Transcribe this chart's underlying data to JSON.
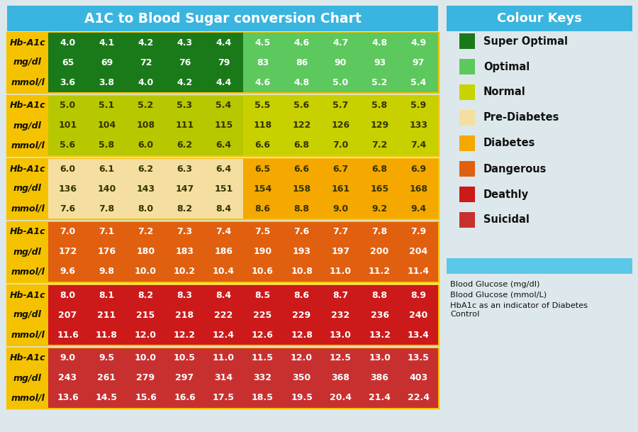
{
  "title": "A1C to Blood Sugar conversion Chart",
  "colour_keys_title": "Colour Keys",
  "background_color": "#dde8ec",
  "header_color": "#3ab5e0",
  "legend_items": [
    {
      "label": "Super Optimal",
      "color": "#1a7a1a"
    },
    {
      "label": "Optimal",
      "color": "#5dc85d"
    },
    {
      "label": "Normal",
      "color": "#c8d400"
    },
    {
      "label": "Pre-Diabetes",
      "color": "#f5dfa0"
    },
    {
      "label": "Diabetes",
      "color": "#f5a800"
    },
    {
      "label": "Dangerous",
      "color": "#e06010"
    },
    {
      "label": "Deathly",
      "color": "#cc1a1a"
    },
    {
      "label": "Suicidal",
      "color": "#c83030"
    }
  ],
  "note_box_color": "#5bc8e8",
  "note_lines": [
    "Blood Glucose (mg/dl)",
    "Blood Glucose (mmol/L)",
    "HbA1c as an indicator of Diabetes\nControl"
  ],
  "label_bg": "#f5c200",
  "label_text_color": "#111100",
  "sections": [
    {
      "rows": [
        {
          "label": "Hb-A1c",
          "values": [
            "4.0",
            "4.1",
            "4.2",
            "4.3",
            "4.4",
            "4.5",
            "4.6",
            "4.7",
            "4.8",
            "4.9"
          ]
        },
        {
          "label": "mg/dl",
          "values": [
            "65",
            "69",
            "72",
            "76",
            "79",
            "83",
            "86",
            "90",
            "93",
            "97"
          ]
        },
        {
          "label": "mmol/l",
          "values": [
            "3.6",
            "3.8",
            "4.0",
            "4.2",
            "4.4",
            "4.6",
            "4.8",
            "5.0",
            "5.2",
            "5.4"
          ]
        }
      ],
      "colors": [
        "#1a7a1a",
        "#1a7a1a",
        "#1a7a1a",
        "#1a7a1a",
        "#1a7a1a",
        "#5dc85d",
        "#5dc85d",
        "#5dc85d",
        "#5dc85d",
        "#5dc85d"
      ],
      "text_color": "#ffffff"
    },
    {
      "rows": [
        {
          "label": "Hb-A1c",
          "values": [
            "5.0",
            "5.1",
            "5.2",
            "5.3",
            "5.4",
            "5.5",
            "5.6",
            "5.7",
            "5.8",
            "5.9"
          ]
        },
        {
          "label": "mg/dl",
          "values": [
            "101",
            "104",
            "108",
            "111",
            "115",
            "118",
            "122",
            "126",
            "129",
            "133"
          ]
        },
        {
          "label": "mmol/l",
          "values": [
            "5.6",
            "5.8",
            "6.0",
            "6.2",
            "6.4",
            "6.6",
            "6.8",
            "7.0",
            "7.2",
            "7.4"
          ]
        }
      ],
      "colors": [
        "#b8c800",
        "#b8c800",
        "#b8c800",
        "#b8c800",
        "#b8c800",
        "#c8d000",
        "#c8d000",
        "#c8d000",
        "#c8d000",
        "#c8d000"
      ],
      "text_color": "#333300"
    },
    {
      "rows": [
        {
          "label": "Hb-A1c",
          "values": [
            "6.0",
            "6.1",
            "6.2",
            "6.3",
            "6.4",
            "6.5",
            "6.6",
            "6.7",
            "6.8",
            "6.9"
          ]
        },
        {
          "label": "mg/dl",
          "values": [
            "136",
            "140",
            "143",
            "147",
            "151",
            "154",
            "158",
            "161",
            "165",
            "168"
          ]
        },
        {
          "label": "mmol/l",
          "values": [
            "7.6",
            "7.8",
            "8.0",
            "8.2",
            "8.4",
            "8.6",
            "8.8",
            "9.0",
            "9.2",
            "9.4"
          ]
        }
      ],
      "colors": [
        "#f5dfa0",
        "#f5dfa0",
        "#f5dfa0",
        "#f5dfa0",
        "#f5dfa0",
        "#f5a800",
        "#f5a800",
        "#f5a800",
        "#f5a800",
        "#f5a800"
      ],
      "text_color": "#333300"
    },
    {
      "rows": [
        {
          "label": "Hb-A1c",
          "values": [
            "7.0",
            "7.1",
            "7.2",
            "7.3",
            "7.4",
            "7.5",
            "7.6",
            "7.7",
            "7.8",
            "7.9"
          ]
        },
        {
          "label": "mg/dl",
          "values": [
            "172",
            "176",
            "180",
            "183",
            "186",
            "190",
            "193",
            "197",
            "200",
            "204"
          ]
        },
        {
          "label": "mmol/l",
          "values": [
            "9.6",
            "9.8",
            "10.0",
            "10.2",
            "10.4",
            "10.6",
            "10.8",
            "11.0",
            "11.2",
            "11.4"
          ]
        }
      ],
      "colors": [
        "#e06010",
        "#e06010",
        "#e06010",
        "#e06010",
        "#e06010",
        "#e06010",
        "#e06010",
        "#e06010",
        "#e06010",
        "#e06010"
      ],
      "text_color": "#ffffff"
    },
    {
      "rows": [
        {
          "label": "Hb-A1c",
          "values": [
            "8.0",
            "8.1",
            "8.2",
            "8.3",
            "8.4",
            "8.5",
            "8.6",
            "8.7",
            "8.8",
            "8.9"
          ]
        },
        {
          "label": "mg/dl",
          "values": [
            "207",
            "211",
            "215",
            "218",
            "222",
            "225",
            "229",
            "232",
            "236",
            "240"
          ]
        },
        {
          "label": "mmol/l",
          "values": [
            "11.6",
            "11.8",
            "12.0",
            "12.2",
            "12.4",
            "12.6",
            "12.8",
            "13.0",
            "13.2",
            "13.4"
          ]
        }
      ],
      "colors": [
        "#cc1a1a",
        "#cc1a1a",
        "#cc1a1a",
        "#cc1a1a",
        "#cc1a1a",
        "#cc1a1a",
        "#cc1a1a",
        "#cc1a1a",
        "#cc1a1a",
        "#cc1a1a"
      ],
      "text_color": "#ffffff"
    },
    {
      "rows": [
        {
          "label": "Hb-A1c",
          "values": [
            "9.0",
            "9.5",
            "10.0",
            "10.5",
            "11.0",
            "11.5",
            "12.0",
            "12.5",
            "13.0",
            "13.5"
          ]
        },
        {
          "label": "mg/dl",
          "values": [
            "243",
            "261",
            "279",
            "297",
            "314",
            "332",
            "350",
            "368",
            "386",
            "403"
          ]
        },
        {
          "label": "mmol/l",
          "values": [
            "13.6",
            "14.5",
            "15.6",
            "16.6",
            "17.5",
            "18.5",
            "19.5",
            "20.4",
            "21.4",
            "22.4"
          ]
        }
      ],
      "colors": [
        "#c83030",
        "#c83030",
        "#c83030",
        "#c83030",
        "#c83030",
        "#c83030",
        "#c83030",
        "#c83030",
        "#c83030",
        "#c83030"
      ],
      "text_color": "#ffffff"
    }
  ]
}
